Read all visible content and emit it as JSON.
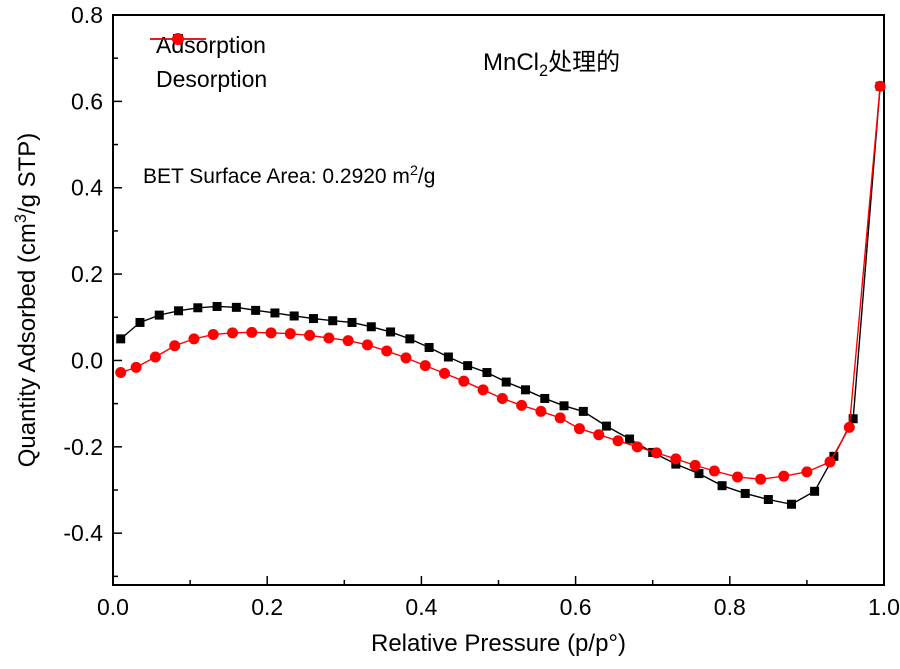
{
  "colors": {
    "background": "#ffffff",
    "axis": "#000000",
    "adsorption": "#000000",
    "desorption": "#ff0000"
  },
  "chart_data": {
    "type": "line",
    "title_annotation": {
      "pre": "MnCl",
      "sub": "2",
      "post": "处理的"
    },
    "bet_annotation": {
      "pre": "BET Surface Area: 0.2920 m",
      "sup": "2",
      "post": "/g"
    },
    "x_axis": {
      "label": "Relative Pressure (p/p°)",
      "min": 0.0,
      "max": 1.0,
      "major_ticks": [
        0.0,
        0.2,
        0.4,
        0.6,
        0.8,
        1.0
      ],
      "tick_labels": [
        "0.0",
        "0.2",
        "0.4",
        "0.6",
        "0.8",
        "1.0"
      ],
      "minor_step": 0.1
    },
    "y_axis": {
      "label_pre": "Quantity Adsorbed (cm",
      "label_sup": "3",
      "label_post": "/g STP)",
      "min": -0.52,
      "max": 0.8,
      "major_ticks": [
        -0.4,
        -0.2,
        0.0,
        0.2,
        0.4,
        0.6,
        0.8
      ],
      "tick_labels": [
        "-0.4",
        "-0.2",
        "0.0",
        "0.2",
        "0.4",
        "0.6",
        "0.8"
      ],
      "minor_step": 0.1
    },
    "grid": false,
    "legend_position": "top-left-inside",
    "series": [
      {
        "name": "Adsorption",
        "color": "#000000",
        "marker": "square",
        "points": [
          [
            0.01,
            0.05
          ],
          [
            0.035,
            0.088
          ],
          [
            0.06,
            0.105
          ],
          [
            0.085,
            0.115
          ],
          [
            0.11,
            0.122
          ],
          [
            0.135,
            0.125
          ],
          [
            0.16,
            0.123
          ],
          [
            0.185,
            0.116
          ],
          [
            0.21,
            0.11
          ],
          [
            0.235,
            0.103
          ],
          [
            0.26,
            0.097
          ],
          [
            0.285,
            0.092
          ],
          [
            0.31,
            0.088
          ],
          [
            0.335,
            0.078
          ],
          [
            0.36,
            0.066
          ],
          [
            0.385,
            0.05
          ],
          [
            0.41,
            0.03
          ],
          [
            0.435,
            0.008
          ],
          [
            0.46,
            -0.012
          ],
          [
            0.485,
            -0.028
          ],
          [
            0.51,
            -0.05
          ],
          [
            0.535,
            -0.068
          ],
          [
            0.56,
            -0.088
          ],
          [
            0.585,
            -0.105
          ],
          [
            0.61,
            -0.118
          ],
          [
            0.64,
            -0.152
          ],
          [
            0.67,
            -0.182
          ],
          [
            0.7,
            -0.213
          ],
          [
            0.73,
            -0.24
          ],
          [
            0.76,
            -0.262
          ],
          [
            0.79,
            -0.29
          ],
          [
            0.82,
            -0.308
          ],
          [
            0.85,
            -0.322
          ],
          [
            0.88,
            -0.333
          ],
          [
            0.91,
            -0.303
          ],
          [
            0.935,
            -0.222
          ],
          [
            0.96,
            -0.135
          ],
          [
            0.995,
            0.635
          ]
        ]
      },
      {
        "name": "Desorption",
        "color": "#ff0000",
        "marker": "circle",
        "points": [
          [
            0.01,
            -0.028
          ],
          [
            0.03,
            -0.016
          ],
          [
            0.055,
            0.008
          ],
          [
            0.08,
            0.034
          ],
          [
            0.105,
            0.05
          ],
          [
            0.13,
            0.06
          ],
          [
            0.155,
            0.064
          ],
          [
            0.18,
            0.065
          ],
          [
            0.205,
            0.064
          ],
          [
            0.23,
            0.062
          ],
          [
            0.255,
            0.058
          ],
          [
            0.28,
            0.052
          ],
          [
            0.305,
            0.046
          ],
          [
            0.33,
            0.036
          ],
          [
            0.355,
            0.022
          ],
          [
            0.38,
            0.006
          ],
          [
            0.405,
            -0.012
          ],
          [
            0.43,
            -0.03
          ],
          [
            0.455,
            -0.048
          ],
          [
            0.48,
            -0.068
          ],
          [
            0.505,
            -0.088
          ],
          [
            0.53,
            -0.104
          ],
          [
            0.555,
            -0.118
          ],
          [
            0.58,
            -0.133
          ],
          [
            0.605,
            -0.158
          ],
          [
            0.63,
            -0.172
          ],
          [
            0.655,
            -0.186
          ],
          [
            0.68,
            -0.2
          ],
          [
            0.705,
            -0.214
          ],
          [
            0.73,
            -0.228
          ],
          [
            0.755,
            -0.243
          ],
          [
            0.78,
            -0.256
          ],
          [
            0.81,
            -0.27
          ],
          [
            0.84,
            -0.275
          ],
          [
            0.87,
            -0.268
          ],
          [
            0.9,
            -0.258
          ],
          [
            0.93,
            -0.235
          ],
          [
            0.955,
            -0.155
          ],
          [
            0.995,
            0.635
          ]
        ]
      }
    ]
  }
}
